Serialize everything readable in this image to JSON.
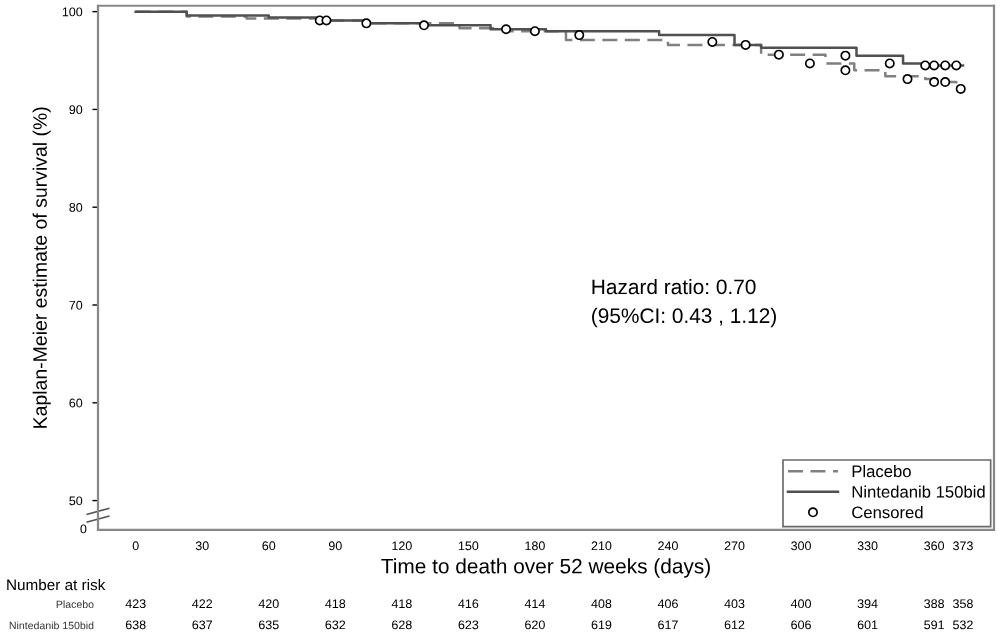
{
  "chart_data": {
    "type": "step",
    "xlabel": "Time to death over 52 weeks (days)",
    "ylabel": "Kaplan-Meier estimate of survival (%)",
    "xlim": [
      -17,
      387
    ],
    "xticks": [
      0,
      30,
      60,
      90,
      120,
      150,
      180,
      210,
      240,
      270,
      300,
      330,
      360,
      373
    ],
    "ylim": [
      47,
      100.6
    ],
    "yticks": [
      50,
      60,
      70,
      80,
      90,
      100
    ],
    "grid": false,
    "legend": "bottom right",
    "series": [
      {
        "name": "Placebo",
        "color": "#808080",
        "line_style": "dashed",
        "x": [
          0,
          23,
          50,
          83,
          104,
          146,
          167,
          194,
          240,
          282,
          311,
          324,
          338,
          356,
          362,
          370,
          373
        ],
        "values": [
          100,
          99.5,
          99.3,
          99.1,
          98.8,
          98.3,
          98.0,
          97.1,
          96.6,
          95.6,
          94.7,
          94.0,
          93.4,
          93.1,
          92.8,
          92.1,
          92.1
        ]
      },
      {
        "name": "Nintedanib 150bid",
        "color": "#505050",
        "line_style": "solid",
        "x": [
          0,
          23,
          60,
          83,
          104,
          130,
          160,
          185,
          236,
          270,
          282,
          325,
          346,
          356,
          373
        ],
        "values": [
          100,
          99.6,
          99.4,
          99.1,
          98.8,
          98.6,
          98.2,
          98.0,
          97.6,
          96.6,
          96.3,
          95.5,
          94.7,
          94.5,
          94.5
        ]
      },
      {
        "name": "Censored",
        "type": "scatter",
        "marker": "circle",
        "color": "#000000",
        "x": [
          83,
          86,
          104,
          130,
          167,
          180,
          200,
          260,
          275,
          320,
          340,
          356,
          360,
          365,
          370,
          290,
          304,
          320,
          348,
          360,
          365,
          372
        ],
        "values": [
          99.1,
          99.1,
          98.8,
          98.6,
          98.2,
          98.0,
          97.6,
          96.9,
          96.6,
          95.5,
          94.7,
          94.5,
          94.5,
          94.5,
          94.5,
          95.6,
          94.7,
          94.0,
          93.1,
          92.8,
          92.8,
          92.1
        ]
      }
    ],
    "annotations": [
      "Hazard ratio: 0.70",
      "(95%CI: 0.43 , 1.12)",
      "Number at risk",
      "0",
      "Placebo",
      "423",
      "422",
      "420",
      "418",
      "418",
      "416",
      "414",
      "408",
      "406",
      "403",
      "400",
      "394",
      "388",
      "358",
      "Nintedanib 150bid",
      "638",
      "637",
      "635",
      "632",
      "628",
      "623",
      "620",
      "619",
      "617",
      "612",
      "606",
      "601",
      "591",
      "532"
    ]
  }
}
